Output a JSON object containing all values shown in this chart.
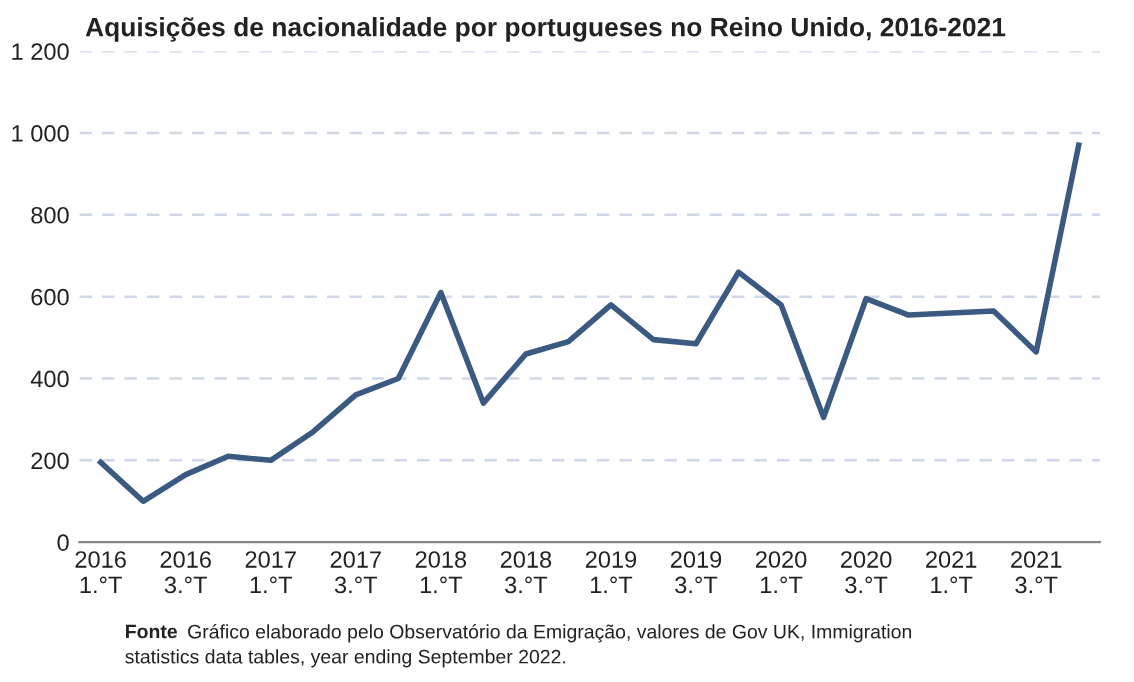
{
  "chart_data": {
    "type": "line",
    "title": "Aquisições de nacionalidade por portugueses no Reino Unido, 2016-2021",
    "categories": [
      "2016\n1.°T",
      null,
      "2016\n3.°T",
      null,
      "2017\n1.°T",
      null,
      "2017\n3.°T",
      null,
      "2018\n1.°T",
      null,
      "2018\n3.°T",
      null,
      "2019\n1.°T",
      null,
      "2019\n3.°T",
      null,
      "2020\n1.°T",
      null,
      "2020\n3.°T",
      null,
      "2021\n1.°T",
      null,
      "2021\n3.°T",
      null
    ],
    "series": [
      {
        "color": "#3b5a82",
        "values": [
          195,
          100,
          165,
          210,
          200,
          270,
          360,
          400,
          610,
          340,
          460,
          490,
          580,
          495,
          485,
          660,
          580,
          305,
          595,
          555,
          560,
          565,
          465,
          970
        ]
      }
    ],
    "ylim": [
      0,
      1200
    ],
    "yticks": [
      0,
      200,
      400,
      600,
      800,
      {
        "value": 1000,
        "label": "1 000"
      },
      {
        "value": 1200,
        "label": "1 200"
      }
    ],
    "grid": "y",
    "line_style": "solid",
    "marker": "none",
    "legend": false,
    "annotations": [
      "Fonte",
      "Gráfico elaborado pelo Observatório da Emigração, valores de Gov UK, Immigration\nstatistics data tables, year ending September 2022."
    ]
  }
}
